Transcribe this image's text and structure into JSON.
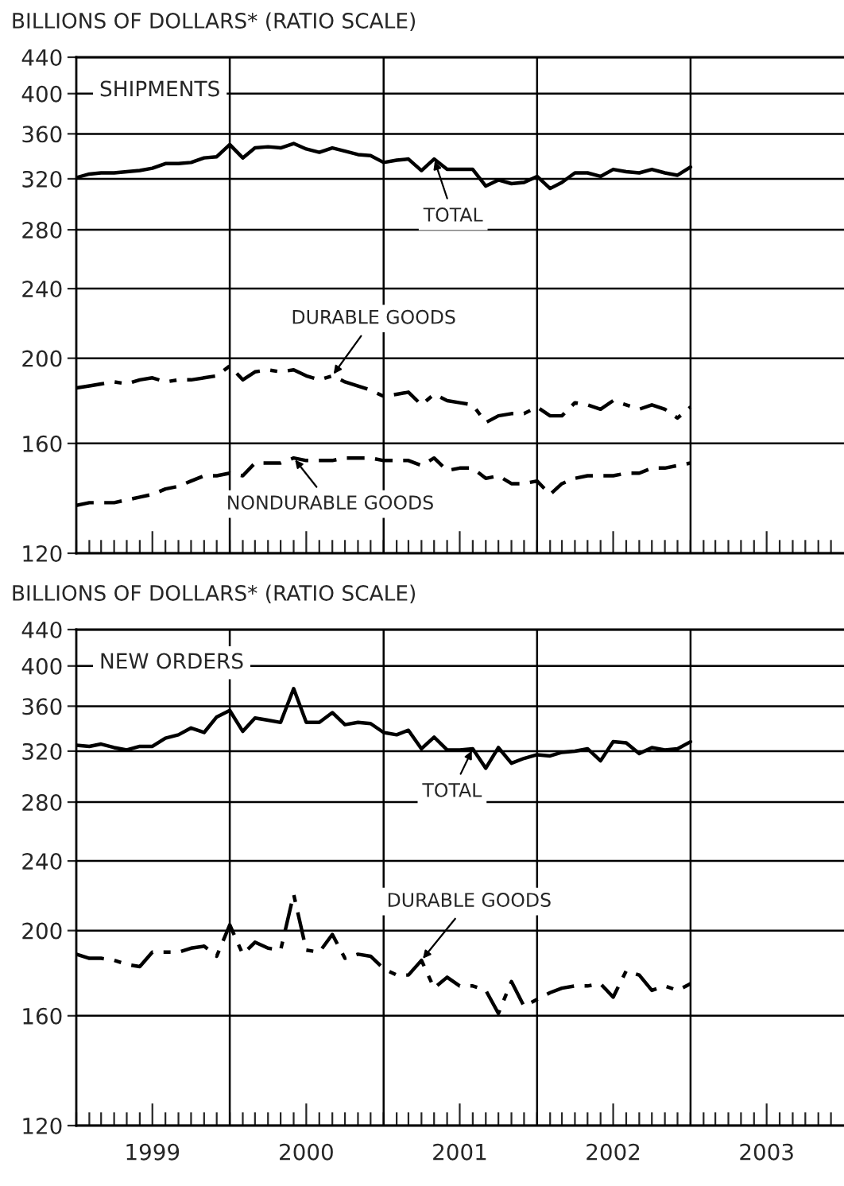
{
  "chart_data": [
    {
      "type": "line",
      "title": "BILLIONS OF DOLLARS* (RATIO SCALE)",
      "subtitle": "SHIPMENTS",
      "log": true,
      "grid": "y",
      "legend": false,
      "tick_labels": "y",
      "annotations": [
        {
          "text": "TOTAL",
          "x": "2001-05",
          "y": 337
        },
        {
          "text": "DURABLE GOODS",
          "x": "2000-09",
          "y": 191
        },
        {
          "text": "NONDURABLE GOODS",
          "x": "2000-06",
          "y": 154
        }
      ],
      "x": [
        "1999-01",
        "1999-02",
        "1999-03",
        "1999-04",
        "1999-05",
        "1999-06",
        "1999-07",
        "1999-08",
        "1999-09",
        "1999-10",
        "1999-11",
        "1999-12",
        "2000-01",
        "2000-02",
        "2000-03",
        "2000-04",
        "2000-05",
        "2000-06",
        "2000-07",
        "2000-08",
        "2000-09",
        "2000-10",
        "2000-11",
        "2000-12",
        "2001-01",
        "2001-02",
        "2001-03",
        "2001-04",
        "2001-05",
        "2001-06",
        "2001-07",
        "2001-08",
        "2001-09",
        "2001-10",
        "2001-11",
        "2001-12",
        "2002-01",
        "2002-02",
        "2002-03",
        "2002-04",
        "2002-05",
        "2002-06",
        "2002-07",
        "2002-08",
        "2002-09",
        "2002-10",
        "2002-11",
        "2002-12",
        "2003-01"
      ],
      "series": [
        {
          "color": "#000000",
          "line_style": "solid",
          "values": [
            321,
            324,
            325,
            325,
            326,
            327,
            329,
            333,
            333,
            334,
            338,
            339,
            350,
            338,
            347,
            348,
            347,
            351,
            346,
            343,
            347,
            344,
            341,
            340,
            334,
            336,
            337,
            327,
            337,
            328,
            328,
            328,
            314,
            319,
            316,
            317,
            322,
            312,
            317,
            325,
            325,
            322,
            328,
            326,
            325,
            328,
            325,
            323,
            330
          ]
        },
        {
          "color": "#000000",
          "line_style": "dashdot",
          "values": [
            185,
            186,
            187,
            188,
            187,
            189,
            190,
            188,
            189,
            189,
            190,
            191,
            196,
            189,
            193,
            194,
            193,
            194,
            191,
            189,
            191,
            188,
            186,
            184,
            181,
            182,
            183,
            177,
            182,
            179,
            178,
            177,
            169,
            172,
            173,
            173,
            176,
            172,
            172,
            178,
            177,
            175,
            179,
            177,
            175,
            177,
            175,
            171,
            176
          ]
        },
        {
          "color": "#000000",
          "line_style": "dashed",
          "values": [
            136,
            137,
            137,
            137,
            138,
            139,
            140,
            142,
            143,
            145,
            147,
            147,
            148,
            147,
            152,
            152,
            152,
            154,
            153,
            153,
            153,
            154,
            154,
            154,
            153,
            153,
            153,
            151,
            154,
            149,
            150,
            150,
            146,
            147,
            144,
            144,
            145,
            140,
            144,
            146,
            147,
            147,
            147,
            148,
            148,
            150,
            150,
            151,
            152
          ]
        }
      ],
      "xlim": [
        "1999-01",
        "2004-01"
      ],
      "ylim": [
        120,
        440
      ],
      "yticks": [
        120,
        160,
        200,
        240,
        280,
        320,
        360,
        400,
        440
      ],
      "xticks": [
        {
          "value": "1999-01",
          "label": null
        },
        {
          "value": "1999-02",
          "label": null
        },
        {
          "value": "1999-03",
          "label": null
        },
        {
          "value": "1999-04",
          "label": null
        },
        {
          "value": "1999-05",
          "label": null
        },
        {
          "value": "1999-06",
          "label": null
        },
        {
          "value": "1999-07",
          "label": null
        },
        {
          "value": "1999-08",
          "label": null
        },
        {
          "value": "1999-09",
          "label": null
        },
        {
          "value": "1999-10",
          "label": null
        },
        {
          "value": "1999-11",
          "label": null
        },
        {
          "value": "1999-12",
          "label": null
        },
        {
          "value": "2000-01",
          "label": null
        },
        {
          "value": "2000-02",
          "label": null
        },
        {
          "value": "2000-03",
          "label": null
        },
        {
          "value": "2000-04",
          "label": null
        },
        {
          "value": "2000-05",
          "label": null
        },
        {
          "value": "2000-06",
          "label": null
        },
        {
          "value": "2000-07",
          "label": null
        },
        {
          "value": "2000-08",
          "label": null
        },
        {
          "value": "2000-09",
          "label": null
        },
        {
          "value": "2000-10",
          "label": null
        },
        {
          "value": "2000-11",
          "label": null
        },
        {
          "value": "2000-12",
          "label": null
        },
        {
          "value": "2001-01",
          "label": null
        },
        {
          "value": "2001-02",
          "label": null
        },
        {
          "value": "2001-03",
          "label": null
        },
        {
          "value": "2001-04",
          "label": null
        },
        {
          "value": "2001-05",
          "label": null
        },
        {
          "value": "2001-06",
          "label": null
        },
        {
          "value": "2001-07",
          "label": null
        },
        {
          "value": "2001-08",
          "label": null
        },
        {
          "value": "2001-09",
          "label": null
        },
        {
          "value": "2001-10",
          "label": null
        },
        {
          "value": "2001-11",
          "label": null
        },
        {
          "value": "2001-12",
          "label": null
        },
        {
          "value": "2002-01",
          "label": null
        },
        {
          "value": "2002-02",
          "label": null
        },
        {
          "value": "2002-03",
          "label": null
        },
        {
          "value": "2002-04",
          "label": null
        },
        {
          "value": "2002-05",
          "label": null
        },
        {
          "value": "2002-06",
          "label": null
        },
        {
          "value": "2002-07",
          "label": null
        },
        {
          "value": "2002-08",
          "label": null
        },
        {
          "value": "2002-09",
          "label": null
        },
        {
          "value": "2002-10",
          "label": null
        },
        {
          "value": "2002-11",
          "label": null
        },
        {
          "value": "2002-12",
          "label": null
        },
        {
          "value": "2003-01",
          "label": null
        },
        {
          "value": "2003-02",
          "label": null
        },
        {
          "value": "2003-03",
          "label": null
        },
        {
          "value": "2003-04",
          "label": null
        },
        {
          "value": "2003-05",
          "label": null
        },
        {
          "value": "2003-06",
          "label": null
        },
        {
          "value": "2003-07",
          "label": null
        },
        {
          "value": "2003-08",
          "label": null
        },
        {
          "value": "2003-09",
          "label": null
        },
        {
          "value": "2003-10",
          "label": null
        },
        {
          "value": "2003-11",
          "label": null
        },
        {
          "value": "2003-12",
          "label": null
        }
      ],
      "ref_lines": [
        {
          "axis": "x",
          "value": "2000-01",
          "color": "#000000"
        },
        {
          "axis": "x",
          "value": "2001-01",
          "color": "#000000"
        },
        {
          "axis": "x",
          "value": "2002-01",
          "color": "#000000"
        },
        {
          "axis": "x",
          "value": "2003-01",
          "color": "#000000"
        }
      ]
    },
    {
      "type": "line",
      "title": "BILLIONS OF DOLLARS* (RATIO SCALE)",
      "subtitle": "NEW ORDERS",
      "log": true,
      "grid": "y",
      "legend": false,
      "annotations": [
        {
          "text": "TOTAL",
          "x": "2001-08",
          "y": 322
        },
        {
          "text": "DURABLE GOODS",
          "x": "2001-04",
          "y": 185
        }
      ],
      "x": [
        "1999-01",
        "1999-02",
        "1999-03",
        "1999-04",
        "1999-05",
        "1999-06",
        "1999-07",
        "1999-08",
        "1999-09",
        "1999-10",
        "1999-11",
        "1999-12",
        "2000-01",
        "2000-02",
        "2000-03",
        "2000-04",
        "2000-05",
        "2000-06",
        "2000-07",
        "2000-08",
        "2000-09",
        "2000-10",
        "2000-11",
        "2000-12",
        "2001-01",
        "2001-02",
        "2001-03",
        "2001-04",
        "2001-05",
        "2001-06",
        "2001-07",
        "2001-08",
        "2001-09",
        "2001-10",
        "2001-11",
        "2001-12",
        "2002-01",
        "2002-02",
        "2002-03",
        "2002-04",
        "2002-05",
        "2002-06",
        "2002-07",
        "2002-08",
        "2002-09",
        "2002-10",
        "2002-11",
        "2002-12",
        "2003-01"
      ],
      "series": [
        {
          "color": "#000000",
          "line_style": "solid",
          "values": [
            325,
            324,
            326,
            323,
            321,
            324,
            324,
            331,
            334,
            340,
            336,
            350,
            356,
            337,
            349,
            347,
            345,
            377,
            345,
            345,
            354,
            343,
            345,
            344,
            336,
            334,
            338,
            322,
            332,
            321,
            321,
            322,
            306,
            323,
            310,
            314,
            317,
            316,
            319,
            320,
            322,
            312,
            328,
            327,
            318,
            323,
            321,
            322,
            328
          ]
        },
        {
          "color": "#000000",
          "line_style": "dashdot",
          "values": [
            188,
            186,
            186,
            185,
            183,
            182,
            189,
            189,
            189,
            191,
            192,
            187,
            203,
            188,
            194,
            191,
            190,
            220,
            190,
            189,
            198,
            186,
            188,
            187,
            181,
            178,
            178,
            185,
            172,
            177,
            173,
            173,
            171,
            161,
            175,
            164,
            167,
            170,
            172,
            173,
            173,
            174,
            168,
            180,
            178,
            171,
            173,
            171,
            174
          ]
        }
      ],
      "xlim": [
        "1999-01",
        "2004-01"
      ],
      "ylim": [
        120,
        440
      ],
      "yticks": [
        120,
        160,
        200,
        240,
        280,
        320,
        360,
        400,
        440
      ],
      "xticks": [
        {
          "value": "1999-01",
          "label": null
        },
        {
          "value": "1999-02",
          "label": null
        },
        {
          "value": "1999-03",
          "label": null
        },
        {
          "value": "1999-04",
          "label": null
        },
        {
          "value": "1999-05",
          "label": null
        },
        {
          "value": "1999-06",
          "label": null
        },
        {
          "value": "1999-07",
          "label": "1999"
        },
        {
          "value": "1999-08",
          "label": null
        },
        {
          "value": "1999-09",
          "label": null
        },
        {
          "value": "1999-10",
          "label": null
        },
        {
          "value": "1999-11",
          "label": null
        },
        {
          "value": "1999-12",
          "label": null
        },
        {
          "value": "2000-01",
          "label": null
        },
        {
          "value": "2000-02",
          "label": null
        },
        {
          "value": "2000-03",
          "label": null
        },
        {
          "value": "2000-04",
          "label": null
        },
        {
          "value": "2000-05",
          "label": null
        },
        {
          "value": "2000-06",
          "label": null
        },
        {
          "value": "2000-07",
          "label": "2000"
        },
        {
          "value": "2000-08",
          "label": null
        },
        {
          "value": "2000-09",
          "label": null
        },
        {
          "value": "2000-10",
          "label": null
        },
        {
          "value": "2000-11",
          "label": null
        },
        {
          "value": "2000-12",
          "label": null
        },
        {
          "value": "2001-01",
          "label": null
        },
        {
          "value": "2001-02",
          "label": null
        },
        {
          "value": "2001-03",
          "label": null
        },
        {
          "value": "2001-04",
          "label": null
        },
        {
          "value": "2001-05",
          "label": null
        },
        {
          "value": "2001-06",
          "label": null
        },
        {
          "value": "2001-07",
          "label": "2001"
        },
        {
          "value": "2001-08",
          "label": null
        },
        {
          "value": "2001-09",
          "label": null
        },
        {
          "value": "2001-10",
          "label": null
        },
        {
          "value": "2001-11",
          "label": null
        },
        {
          "value": "2001-12",
          "label": null
        },
        {
          "value": "2002-01",
          "label": null
        },
        {
          "value": "2002-02",
          "label": null
        },
        {
          "value": "2002-03",
          "label": null
        },
        {
          "value": "2002-04",
          "label": null
        },
        {
          "value": "2002-05",
          "label": null
        },
        {
          "value": "2002-06",
          "label": null
        },
        {
          "value": "2002-07",
          "label": "2002"
        },
        {
          "value": "2002-08",
          "label": null
        },
        {
          "value": "2002-09",
          "label": null
        },
        {
          "value": "2002-10",
          "label": null
        },
        {
          "value": "2002-11",
          "label": null
        },
        {
          "value": "2002-12",
          "label": null
        },
        {
          "value": "2003-01",
          "label": null
        },
        {
          "value": "2003-02",
          "label": null
        },
        {
          "value": "2003-03",
          "label": null
        },
        {
          "value": "2003-04",
          "label": null
        },
        {
          "value": "2003-05",
          "label": null
        },
        {
          "value": "2003-06",
          "label": null
        },
        {
          "value": "2003-07",
          "label": "2003"
        },
        {
          "value": "2003-08",
          "label": null
        },
        {
          "value": "2003-09",
          "label": null
        },
        {
          "value": "2003-10",
          "label": null
        },
        {
          "value": "2003-11",
          "label": null
        },
        {
          "value": "2003-12",
          "label": null
        }
      ],
      "ref_lines": [
        {
          "axis": "x",
          "value": "2000-01",
          "color": "#000000"
        },
        {
          "axis": "x",
          "value": "2001-01",
          "color": "#000000"
        },
        {
          "axis": "x",
          "value": "2002-01",
          "color": "#000000"
        },
        {
          "axis": "x",
          "value": "2003-01",
          "color": "#000000"
        }
      ]
    }
  ]
}
